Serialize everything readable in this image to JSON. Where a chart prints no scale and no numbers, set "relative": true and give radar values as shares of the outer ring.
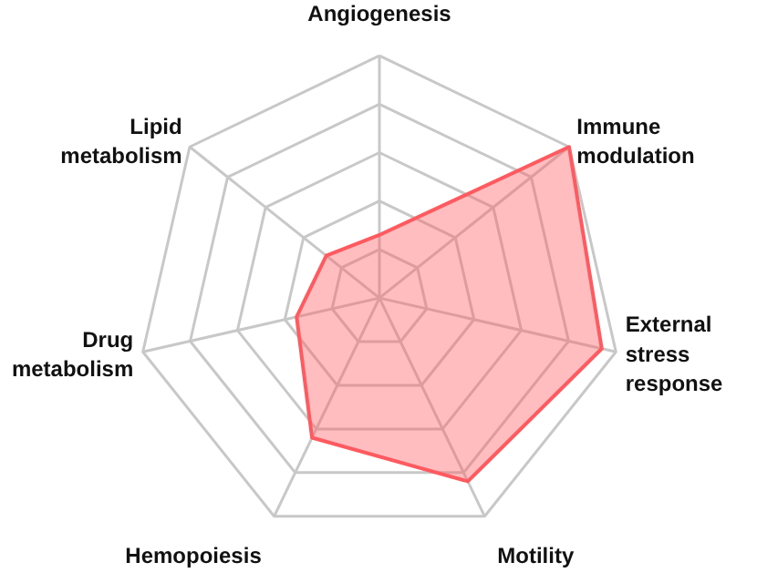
{
  "chart_data": {
    "type": "radar",
    "relative": true,
    "categories": [
      "Angiogenesis",
      "Immune modulation",
      "External stress response",
      "Motility",
      "Hemopoiesis",
      "Drug metabolism",
      "Lipid metabolism"
    ],
    "series": [
      {
        "color": "#ff5a5f",
        "values": [
          0.26,
          1.0,
          0.94,
          0.84,
          0.64,
          0.35,
          0.28
        ]
      }
    ],
    "grid": true,
    "marker": "none"
  }
}
